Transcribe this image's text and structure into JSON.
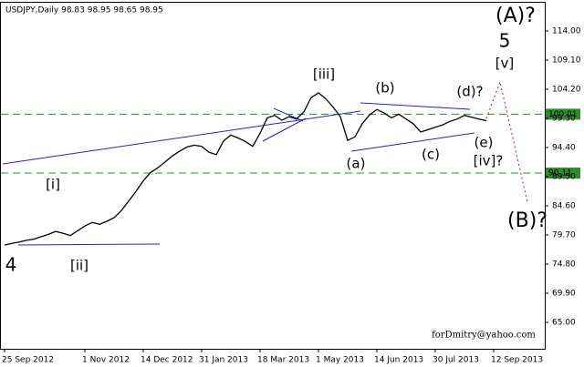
{
  "chart_data": {
    "type": "line",
    "title": "USDJPY,Daily  98.83 98.95 98.65 98.95",
    "categories": [
      "25 Sep 2012",
      null,
      null,
      null,
      null,
      null,
      null,
      null,
      null,
      null,
      null,
      "1 Nov 2012",
      null,
      null,
      null,
      null,
      null,
      null,
      null,
      "14 Dec 2012",
      null,
      null,
      null,
      null,
      null,
      null,
      null,
      "31 Jan 2013",
      null,
      null,
      null,
      null,
      null,
      null,
      null,
      "18 Mar 2013",
      null,
      null,
      null,
      null,
      null,
      null,
      null,
      "1 May 2013",
      null,
      null,
      null,
      null,
      null,
      null,
      null,
      "14 Jun 2013",
      null,
      null,
      null,
      null,
      null,
      null,
      null,
      "30 Jul 2013",
      null,
      null,
      null,
      null,
      null,
      null,
      null,
      "12 Sep 2013"
    ],
    "series": [
      {
        "name": "USDJPY",
        "color": "#000000",
        "values": [
          78.0,
          78.3,
          78.5,
          78.8,
          79.0,
          79.4,
          79.8,
          80.3,
          80.0,
          79.6,
          80.4,
          81.2,
          81.8,
          81.5,
          82.0,
          82.6,
          83.8,
          85.4,
          87.0,
          88.8,
          90.2,
          91.0,
          92.0,
          93.0,
          93.8,
          94.5,
          94.8,
          94.6,
          93.6,
          93.2,
          95.5,
          96.5,
          96.0,
          95.4,
          94.6,
          96.8,
          99.4,
          99.8,
          99.0,
          99.6,
          99.2,
          100.4,
          102.8,
          103.6,
          102.6,
          101.2,
          99.6,
          95.6,
          96.2,
          98.4,
          99.9,
          100.8,
          100.2,
          99.4,
          100.0,
          99.2,
          98.4,
          97.0,
          97.4,
          97.8,
          98.2,
          98.8,
          99.2,
          99.8,
          99.5,
          99.2,
          98.9,
          null
        ]
      }
    ],
    "ylim": [
      60.56,
      118.75
    ],
    "yticks": [
      {
        "value": 65,
        "label": "65.00"
      },
      {
        "value": 69.9,
        "label": "69.90"
      },
      {
        "value": 74.8,
        "label": "74.80"
      },
      {
        "value": 79.7,
        "label": "79.70"
      },
      {
        "value": 84.6,
        "label": "84.60"
      },
      {
        "value": 89.5,
        "label": "89.50"
      },
      {
        "value": 94.4,
        "label": "94.40"
      },
      {
        "value": 99.3,
        "label": "99.30"
      },
      {
        "value": 104.2,
        "label": "104.20"
      },
      {
        "value": 109.1,
        "label": "109.10"
      },
      {
        "value": 114,
        "label": "114.00"
      }
    ],
    "grid": false,
    "levels": [
      100.01,
      90.11
    ],
    "level_color": "#2e8b2e",
    "annotations": [
      {
        "text": "(A)?",
        "color": "#2323c8"
      },
      {
        "text": "5",
        "color": "#a52a2a"
      },
      {
        "text": "[v]",
        "color": "#2e8b2e"
      },
      {
        "text": "[iii]",
        "color": "#2e8b2e"
      },
      {
        "text": "(b)",
        "color": "#2323c8"
      },
      {
        "text": "(d)?",
        "color": "#2323c8"
      },
      {
        "text": "(a)",
        "color": "#2323c8"
      },
      {
        "text": "(c)",
        "color": "#2323c8"
      },
      {
        "text": "(e)",
        "color": "#2323c8"
      },
      {
        "text": "[iv]?",
        "color": "#2e8b2e"
      },
      {
        "text": "[i]",
        "color": "#2e8b2e"
      },
      {
        "text": "[ii]",
        "color": "#2e8b2e"
      },
      {
        "text": "4",
        "color": "#a52a2a"
      },
      {
        "text": "(B)?",
        "color": "#2323c8"
      }
    ],
    "watermark": "forDmitry@yahoo.com"
  }
}
